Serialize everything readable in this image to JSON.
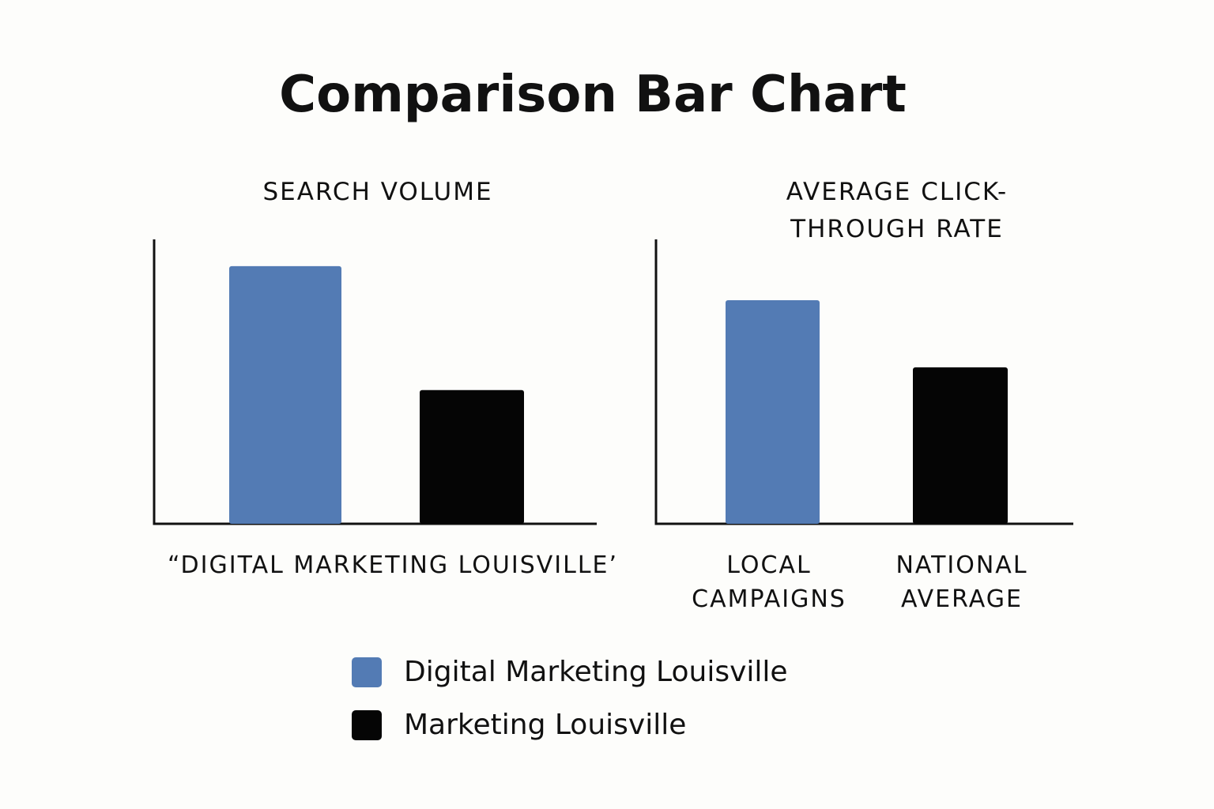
{
  "title": "Comparison Bar Chart",
  "chart_data": [
    {
      "type": "bar",
      "title": "SEARCH VOLUME",
      "categories": [
        "“DIGITAL MARKETING LOUISVILLE’"
      ],
      "series": [
        {
          "name": "Digital Marketing Louisville",
          "color": "#537bb4",
          "values": [
            90.6
          ]
        },
        {
          "name": "Marketing Louisville",
          "color": "#050505",
          "values": [
            47
          ]
        }
      ],
      "ylim": [
        0,
        100
      ]
    },
    {
      "type": "bar",
      "title": "AVERAGE CLICK-THROUGH RATE",
      "categories": [
        "LOCAL CAMPAIGNS",
        "NATIONAL AVERAGE"
      ],
      "values": [
        78.6,
        55
      ],
      "colors": [
        "#537bb4",
        "#050505"
      ],
      "ylim": [
        0,
        100
      ]
    }
  ]
}
